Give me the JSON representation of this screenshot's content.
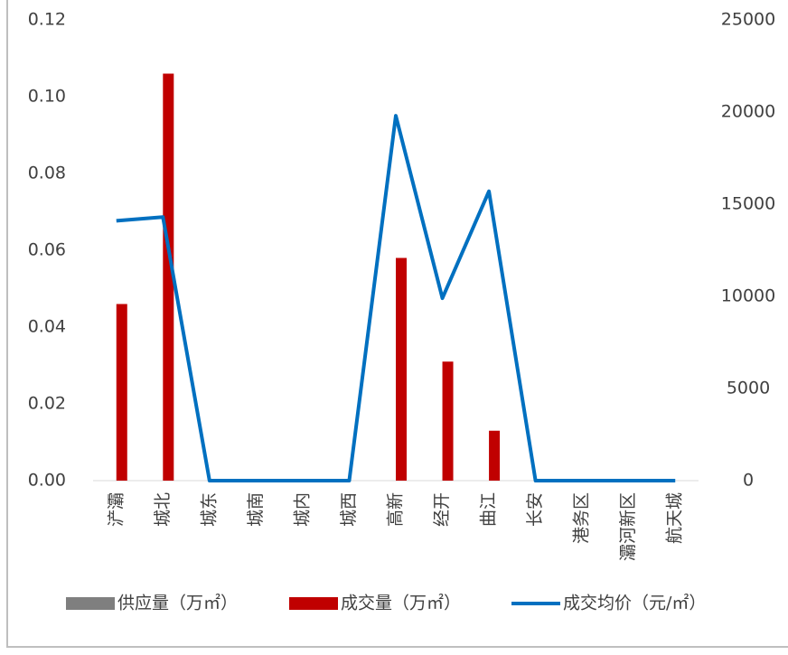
{
  "chart_data": {
    "type": "bar",
    "categories": [
      "浐灞",
      "城北",
      "城东",
      "城南",
      "城内",
      "城西",
      "高新",
      "经开",
      "曲江",
      "长安",
      "港务区",
      "灞河新区",
      "航天城"
    ],
    "series": [
      {
        "name": "供应量（万㎡）",
        "color": "#7f7f7f",
        "type": "bar",
        "values": [
          0,
          0,
          0,
          0,
          0,
          0,
          0,
          0,
          0,
          0,
          0,
          0,
          0
        ]
      },
      {
        "name": "成交量（万㎡）",
        "color": "#c00000",
        "type": "bar",
        "values": [
          0.046,
          0.106,
          0,
          0,
          0,
          0,
          0.058,
          0.031,
          0.013,
          0,
          0,
          0,
          0
        ]
      },
      {
        "name": "成交均价（元/㎡）",
        "color": "#0070c0",
        "type": "line",
        "axis": "y2",
        "values": [
          14100,
          14300,
          0,
          0,
          0,
          0,
          19800,
          9900,
          15700,
          0,
          0,
          0,
          0
        ]
      }
    ],
    "ylim": [
      0,
      0.12
    ],
    "yticks": [
      {
        "value": 0,
        "label": "0.00"
      },
      {
        "value": 0.02,
        "label": "0.02"
      },
      {
        "value": 0.04,
        "label": "0.04"
      },
      {
        "value": 0.06,
        "label": "0.06"
      },
      {
        "value": 0.08,
        "label": "0.08"
      },
      {
        "value": 0.1,
        "label": "0.10"
      },
      {
        "value": 0.12,
        "label": "0.12"
      }
    ],
    "y2lim": [
      0,
      25000
    ],
    "y2ticks": [
      0,
      5000,
      10000,
      15000,
      20000,
      25000
    ],
    "legend": "bottom"
  }
}
